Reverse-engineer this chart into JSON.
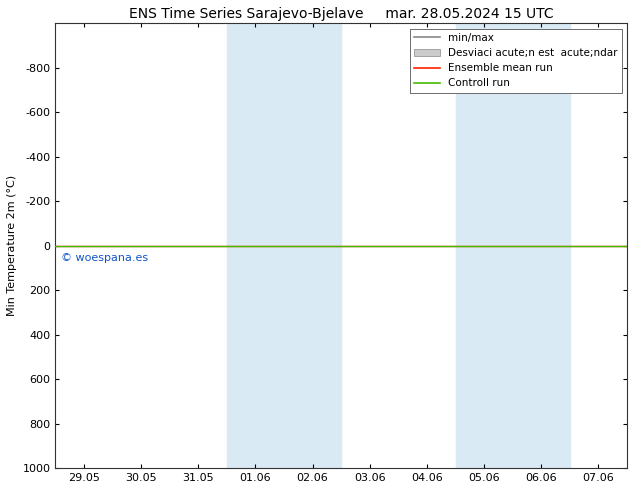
{
  "title_left": "ENS Time Series Sarajevo-Bjelave",
  "title_right": "mar. 28.05.2024 15 UTC",
  "ylabel": "Min Temperature 2m (°C)",
  "ylim_bottom": 1000,
  "ylim_top": -1000,
  "yticks": [
    -800,
    -600,
    -400,
    -200,
    0,
    200,
    400,
    600,
    800,
    1000
  ],
  "xtick_labels": [
    "29.05",
    "30.05",
    "31.05",
    "01.06",
    "02.06",
    "03.06",
    "04.06",
    "05.06",
    "06.06",
    "07.06"
  ],
  "shaded_regions": [
    {
      "xmin": 3,
      "xmax": 5,
      "color": "#daeaf5"
    },
    {
      "xmin": 7,
      "xmax": 9,
      "color": "#daeaf5"
    }
  ],
  "green_line_y": 0,
  "red_line_y": 0,
  "green_line_color": "#44bb00",
  "red_line_color": "#ff2200",
  "watermark": "© woespana.es",
  "watermark_color": "#1155cc",
  "legend_label_0": "min/max",
  "legend_label_1": "Desviaci acute;n est  acute;ndar",
  "legend_label_2": "Ensemble mean run",
  "legend_label_3": "Controll run",
  "legend_color_0": "#888888",
  "legend_color_1": "#cccccc",
  "legend_color_2": "#ff2200",
  "legend_color_3": "#44bb00",
  "background_color": "#ffffff",
  "title_fontsize": 10,
  "tick_fontsize": 8,
  "ylabel_fontsize": 8
}
